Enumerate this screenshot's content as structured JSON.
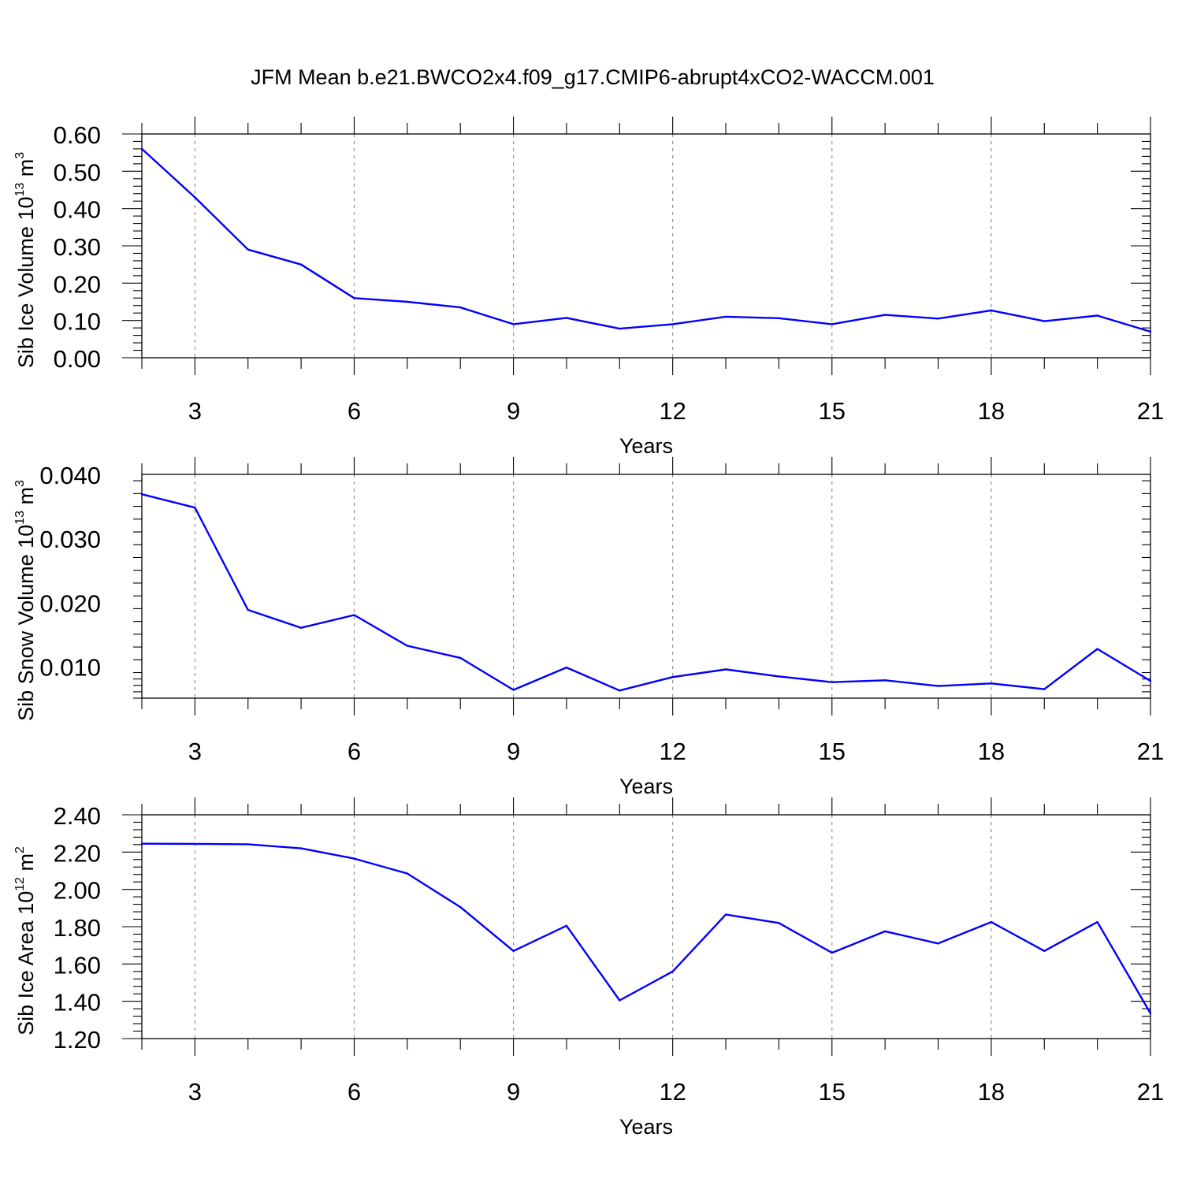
{
  "title": "JFM Mean b.e21.BWCO2x4.f09_g17.CMIP6-abrupt4xCO2-WACCM.001",
  "chart_data": [
    {
      "type": "line",
      "ylabel": "Sib Ice Volume 10",
      "ylabel_exp": "13",
      "ylabel_unit": " m",
      "ylabel_unit_exp": "3",
      "xlabel": "Years",
      "xlim": [
        2,
        21
      ],
      "ylim": [
        0,
        0.6
      ],
      "xticks": [
        3,
        6,
        9,
        12,
        15,
        18,
        21
      ],
      "yticks": [
        0.0,
        0.1,
        0.2,
        0.3,
        0.4,
        0.5,
        0.6
      ],
      "ytick_labels": [
        "0.00",
        "0.10",
        "0.20",
        "0.30",
        "0.40",
        "0.50",
        "0.60"
      ],
      "grid": "vertical dashed at major x ticks",
      "color": "#0000ff",
      "x": [
        2,
        3,
        4,
        5,
        6,
        7,
        8,
        9,
        10,
        11,
        12,
        13,
        14,
        15,
        16,
        17,
        18,
        19,
        20,
        21
      ],
      "y": [
        0.56,
        0.43,
        0.29,
        0.25,
        0.16,
        0.15,
        0.135,
        0.09,
        0.107,
        0.078,
        0.09,
        0.11,
        0.106,
        0.09,
        0.115,
        0.105,
        0.127,
        0.098,
        0.113,
        0.07
      ]
    },
    {
      "type": "line",
      "ylabel": "Sib Snow Volume 10",
      "ylabel_exp": "13",
      "ylabel_unit": " m",
      "ylabel_unit_exp": "3",
      "xlabel": "Years",
      "xlim": [
        2,
        21
      ],
      "ylim": [
        0.005,
        0.04
      ],
      "xticks": [
        3,
        6,
        9,
        12,
        15,
        18,
        21
      ],
      "yticks": [
        0.01,
        0.02,
        0.03,
        0.04
      ],
      "ytick_labels": [
        "0.010",
        "0.020",
        "0.030",
        "0.040"
      ],
      "grid": "vertical dashed at major x ticks",
      "color": "#0000ff",
      "x": [
        2,
        3,
        4,
        5,
        6,
        7,
        8,
        9,
        10,
        11,
        12,
        13,
        14,
        15,
        16,
        17,
        18,
        19,
        20,
        21
      ],
      "y": [
        0.0369,
        0.0348,
        0.0188,
        0.016,
        0.018,
        0.0132,
        0.0113,
        0.0063,
        0.0098,
        0.0062,
        0.0083,
        0.0095,
        0.0084,
        0.0075,
        0.0078,
        0.0069,
        0.0073,
        0.0064,
        0.0127,
        0.0077
      ]
    },
    {
      "type": "line",
      "ylabel": "Sib Ice Area 10",
      "ylabel_exp": "12",
      "ylabel_unit": " m",
      "ylabel_unit_exp": "2",
      "xlabel": "Years",
      "xlim": [
        2,
        21
      ],
      "ylim": [
        1.2,
        2.4
      ],
      "xticks": [
        3,
        6,
        9,
        12,
        15,
        18,
        21
      ],
      "yticks": [
        1.2,
        1.4,
        1.6,
        1.8,
        2.0,
        2.2,
        2.4
      ],
      "ytick_labels": [
        "1.20",
        "1.40",
        "1.60",
        "1.80",
        "2.00",
        "2.20",
        "2.40"
      ],
      "grid": "vertical dashed at major x ticks",
      "color": "#0000ff",
      "x": [
        2,
        3,
        4,
        5,
        6,
        7,
        8,
        9,
        10,
        11,
        12,
        13,
        14,
        15,
        16,
        17,
        18,
        19,
        20,
        21
      ],
      "y": [
        2.245,
        2.244,
        2.242,
        2.22,
        2.165,
        2.085,
        1.905,
        1.67,
        1.805,
        1.405,
        1.56,
        1.865,
        1.82,
        1.66,
        1.775,
        1.71,
        1.825,
        1.67,
        1.825,
        1.335
      ]
    }
  ]
}
